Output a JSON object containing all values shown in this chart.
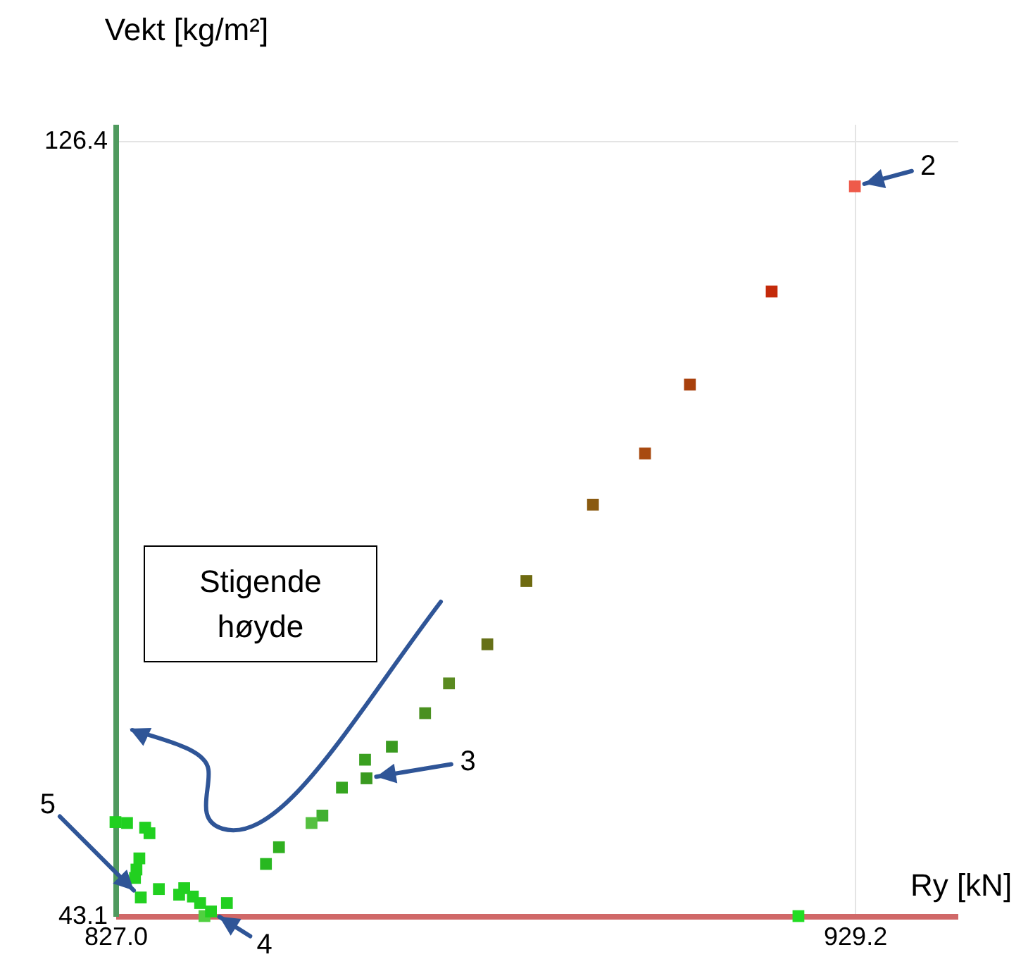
{
  "chart_data": {
    "type": "scatter",
    "xlabel": "Ry [kN]",
    "ylabel": "Vekt [kg/m²]",
    "x": [
      929.2,
      917.7,
      906.4,
      900.2,
      893.0,
      883.8,
      878.4,
      873.1,
      869.8,
      865.2,
      861.5,
      861.7,
      858.3,
      855.6,
      854.1,
      849.6,
      847.8,
      827.0,
      828.6,
      831.1,
      831.7,
      830.3,
      829.9,
      829.7,
      830.5,
      833.0,
      835.8,
      836.5,
      837.7,
      838.7,
      839.3,
      840.2,
      842.4,
      921.4
    ],
    "values": [
      121.5,
      110.2,
      100.2,
      92.8,
      87.3,
      79.1,
      72.3,
      68.1,
      64.9,
      61.3,
      59.9,
      57.9,
      56.9,
      53.9,
      53.1,
      50.5,
      48.7,
      53.2,
      53.1,
      52.6,
      52.0,
      49.3,
      48.1,
      47.2,
      45.1,
      46.0,
      45.4,
      46.1,
      45.2,
      44.5,
      43.1,
      43.6,
      44.5,
      43.1
    ],
    "colors": [
      "#ee5a4a",
      "#c42a0a",
      "#a8400c",
      "#a84a10",
      "#8a5a10",
      "#6e6a10",
      "#667018",
      "#5a8a20",
      "#4a9020",
      "#3a9a20",
      "#3aa020",
      "#3a9a20",
      "#35a520",
      "#40b030",
      "#55c040",
      "#30b020",
      "#28b820",
      "#20d020",
      "#20d020",
      "#20d020",
      "#20d020",
      "#22d020",
      "#22d020",
      "#22d020",
      "#22d020",
      "#22d020",
      "#22d020",
      "#22d020",
      "#22d020",
      "#22d020",
      "#50d040",
      "#22d020",
      "#22d020",
      "#22dd22"
    ],
    "marker": "square",
    "grid": true,
    "xlim": [
      827.0,
      943.4
    ],
    "ylim": [
      43.1,
      128.2
    ],
    "xticks": [
      {
        "value": 827.0,
        "label": "827.0"
      },
      {
        "value": 929.2,
        "label": "929.2"
      }
    ],
    "yticks": [
      {
        "value": 43.1,
        "label": "43.1"
      },
      {
        "value": 126.4,
        "label": "126.4"
      }
    ],
    "annotations": [
      {
        "text": "2",
        "x": 929.2,
        "y": 121.5
      },
      {
        "text": "3",
        "x": 861.7,
        "y": 57.9
      },
      {
        "text": "4",
        "x": 840.2,
        "y": 43.6
      },
      {
        "text": "5",
        "x": 830.5,
        "y": 45.1
      },
      "Stigende høyde"
    ]
  }
}
